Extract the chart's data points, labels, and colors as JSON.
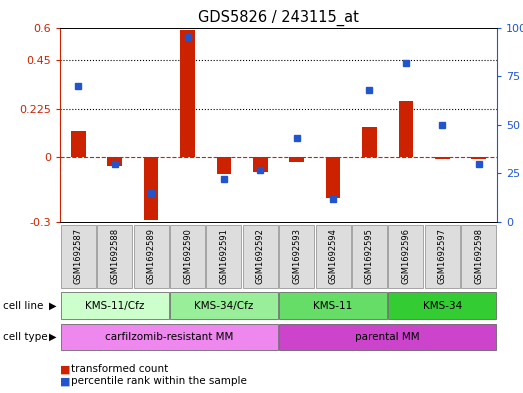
{
  "title": "GDS5826 / 243115_at",
  "samples": [
    "GSM1692587",
    "GSM1692588",
    "GSM1692589",
    "GSM1692590",
    "GSM1692591",
    "GSM1692592",
    "GSM1692593",
    "GSM1692594",
    "GSM1692595",
    "GSM1692596",
    "GSM1692597",
    "GSM1692598"
  ],
  "transformed_count": [
    0.12,
    -0.04,
    -0.29,
    0.59,
    -0.08,
    -0.07,
    -0.02,
    -0.19,
    0.14,
    0.26,
    -0.01,
    -0.01
  ],
  "percentile_rank": [
    70,
    30,
    15,
    95,
    22,
    27,
    43,
    12,
    68,
    82,
    50,
    30
  ],
  "ylim_left": [
    -0.3,
    0.6
  ],
  "ylim_right": [
    0,
    100
  ],
  "yticks_left": [
    -0.3,
    0,
    0.225,
    0.45,
    0.6
  ],
  "yticks_right": [
    0,
    25,
    50,
    75,
    100
  ],
  "hlines": [
    0.225,
    0.45
  ],
  "bar_color": "#cc2200",
  "dot_color": "#2255cc",
  "zero_line_color": "#cc2200",
  "cell_line_groups": [
    {
      "label": "KMS-11/Cfz",
      "start": 0,
      "end": 3,
      "color": "#ccffcc"
    },
    {
      "label": "KMS-34/Cfz",
      "start": 3,
      "end": 6,
      "color": "#99ee99"
    },
    {
      "label": "KMS-11",
      "start": 6,
      "end": 9,
      "color": "#66dd66"
    },
    {
      "label": "KMS-34",
      "start": 9,
      "end": 12,
      "color": "#33cc33"
    }
  ],
  "cell_type_groups": [
    {
      "label": "carfilzomib-resistant MM",
      "start": 0,
      "end": 6,
      "color": "#ee88ee"
    },
    {
      "label": "parental MM",
      "start": 6,
      "end": 12,
      "color": "#cc44cc"
    }
  ],
  "legend_bar_label": "transformed count",
  "legend_dot_label": "percentile rank within the sample",
  "cell_line_label": "cell line",
  "cell_type_label": "cell type"
}
